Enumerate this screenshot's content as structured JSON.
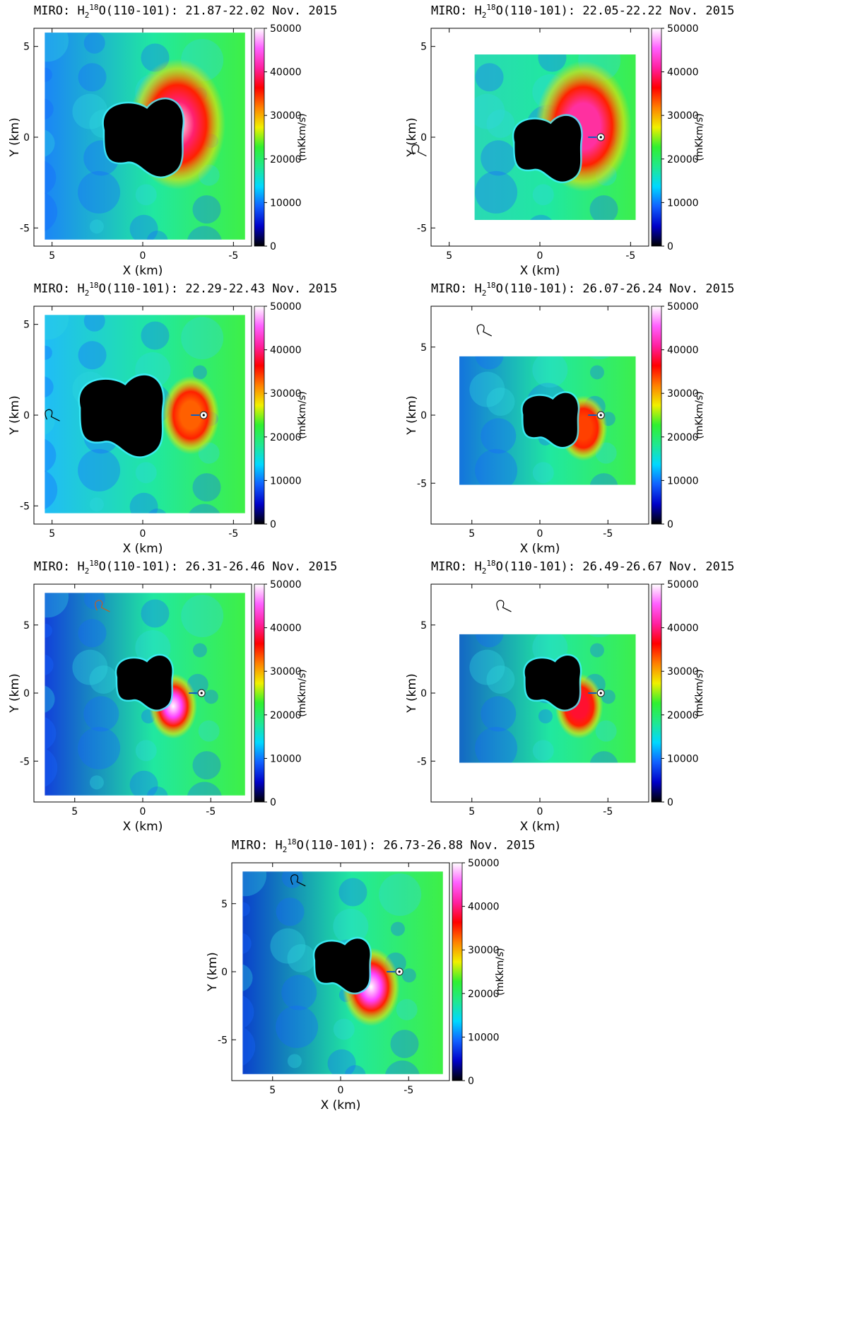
{
  "figure": {
    "instrument": "MIRO",
    "species_prefix": "H",
    "species_sub": "2",
    "species_sup": "18",
    "species_suffix": "O(110-101)",
    "colorbar_label": "(mKkm/s)",
    "colorbar_ticks": [
      "0",
      "10000",
      "20000",
      "30000",
      "40000",
      "50000"
    ],
    "x_label": "X (km)",
    "y_label": "Y (km)",
    "colorscale": [
      "#000000",
      "#0000c8",
      "#1060ff",
      "#00d8ff",
      "#20e890",
      "#30f030",
      "#f0f000",
      "#ff8000",
      "#ff0000",
      "#ff20a0",
      "#ff60ff",
      "#ffffff"
    ]
  },
  "chart_data": [
    {
      "type": "heatmap",
      "date_range": "21.87-22.02 Nov. 2015",
      "xlim": [
        6,
        -6
      ],
      "ylim": [
        -6,
        6
      ],
      "x_ticks": [
        "5",
        "0",
        "-5"
      ],
      "y_ticks": [
        "5",
        "0",
        "-5"
      ],
      "zlim": [
        0,
        50000
      ],
      "nucleus_marker": false,
      "sun_arrow": false,
      "peak_value": 48000
    },
    {
      "type": "heatmap",
      "date_range": "22.05-22.22 Nov. 2015",
      "xlim": [
        6,
        -6
      ],
      "ylim": [
        -6,
        6
      ],
      "x_ticks": [
        "5",
        "0",
        "-5"
      ],
      "y_ticks": [
        "5",
        "0",
        "-5"
      ],
      "zlim": [
        0,
        50000
      ],
      "nucleus_marker": true,
      "sun_arrow": true,
      "peak_value": 45000
    },
    {
      "type": "heatmap",
      "date_range": "22.29-22.43 Nov. 2015",
      "xlim": [
        6,
        -6
      ],
      "ylim": [
        -6,
        6
      ],
      "x_ticks": [
        "5",
        "0",
        "-5"
      ],
      "y_ticks": [
        "5",
        "0",
        "-5"
      ],
      "zlim": [
        0,
        50000
      ],
      "nucleus_marker": true,
      "sun_arrow": true,
      "peak_value": 34000
    },
    {
      "type": "heatmap",
      "date_range": "26.07-26.24 Nov. 2015",
      "xlim": [
        8,
        -8
      ],
      "ylim": [
        -8,
        8
      ],
      "x_ticks": [
        "5",
        "0",
        "-5"
      ],
      "y_ticks": [
        "5",
        "0",
        "-5"
      ],
      "zlim": [
        0,
        50000
      ],
      "nucleus_marker": true,
      "sun_arrow": true,
      "peak_value": 33000
    },
    {
      "type": "heatmap",
      "date_range": "26.31-26.46 Nov. 2015",
      "xlim": [
        8,
        -8
      ],
      "ylim": [
        -8,
        8
      ],
      "x_ticks": [
        "5",
        "0",
        "-5"
      ],
      "y_ticks": [
        "5",
        "0",
        "-5"
      ],
      "zlim": [
        0,
        50000
      ],
      "nucleus_marker": true,
      "sun_arrow": true,
      "peak_value": 50000
    },
    {
      "type": "heatmap",
      "date_range": "26.49-26.67 Nov. 2015",
      "xlim": [
        8,
        -8
      ],
      "ylim": [
        -8,
        8
      ],
      "x_ticks": [
        "5",
        "0",
        "-5"
      ],
      "y_ticks": [
        "5",
        "0",
        "-5"
      ],
      "zlim": [
        0,
        50000
      ],
      "nucleus_marker": true,
      "sun_arrow": true,
      "peak_value": 42000
    },
    {
      "type": "heatmap",
      "date_range": "26.73-26.88 Nov. 2015",
      "xlim": [
        8,
        -8
      ],
      "ylim": [
        -8,
        8
      ],
      "x_ticks": [
        "5",
        "0",
        "-5"
      ],
      "y_ticks": [
        "5",
        "0",
        "-5"
      ],
      "zlim": [
        0,
        50000
      ],
      "nucleus_marker": true,
      "sun_arrow": true,
      "peak_value": 50000
    }
  ]
}
